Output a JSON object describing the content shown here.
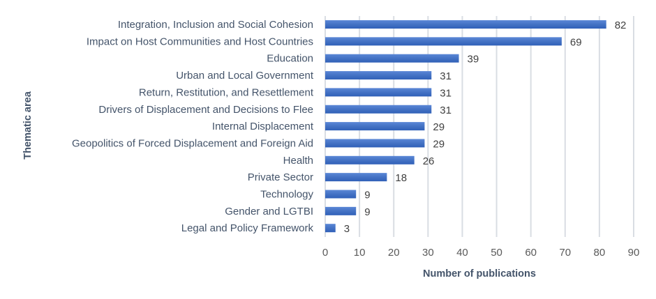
{
  "chart_data": {
    "type": "bar",
    "orientation": "horizontal",
    "title": "",
    "xlabel": "Number of publications",
    "ylabel": "Thematic area",
    "xlim": [
      0,
      90
    ],
    "xticks": [
      0,
      10,
      20,
      30,
      40,
      50,
      60,
      70,
      80,
      90
    ],
    "grid": true,
    "legend": "none",
    "bar_color": "#4472c4",
    "categories": [
      "Integration, Inclusion and Social Cohesion",
      "Impact on Host Communities and Host Countries",
      "Education",
      "Urban and Local Government",
      "Return, Restitution, and Resettlement",
      "Drivers of Displacement and Decisions to Flee",
      "Internal Displacement",
      "Geopolitics of Forced Displacement and Foreign Aid",
      "Health",
      "Private Sector",
      "Technology",
      "Gender and LGTBI",
      "Legal and Policy Framework"
    ],
    "values": [
      82,
      69,
      39,
      31,
      31,
      31,
      29,
      29,
      26,
      18,
      9,
      9,
      3
    ]
  }
}
